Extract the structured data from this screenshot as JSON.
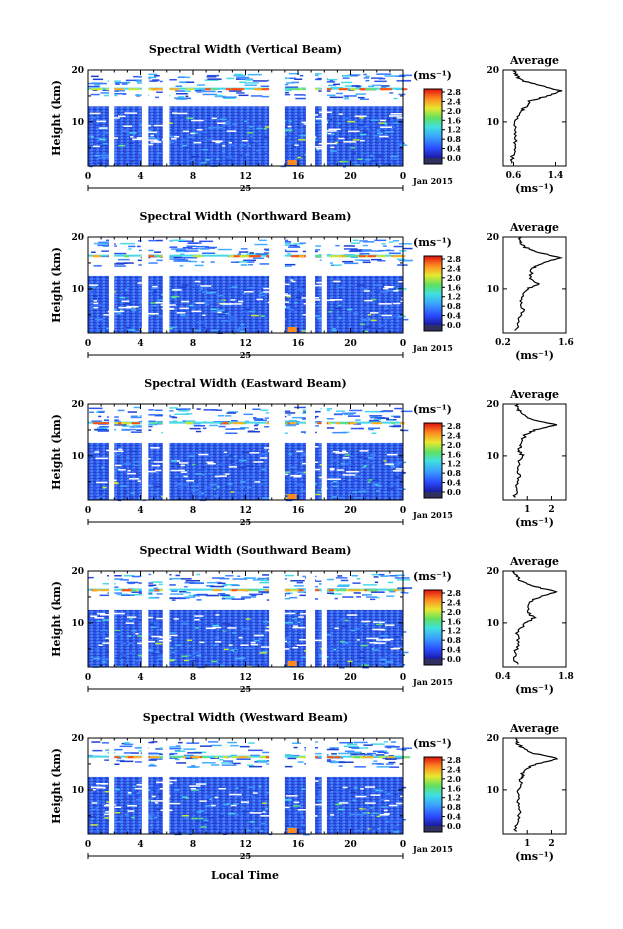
{
  "figure": {
    "date_label": "Jan 2015",
    "day_label": "25",
    "xlabel": "Local Time",
    "ylabel": "Height (km)",
    "colorbar_unit": "(ms⁻¹)",
    "colorbar_ticks": [
      "0.0",
      "0.4",
      "0.8",
      "1.2",
      "1.6",
      "2.0",
      "2.4",
      "2.8"
    ],
    "x_ticks": [
      "0",
      "4",
      "8",
      "12",
      "16",
      "20",
      "0"
    ],
    "y_ticks": [
      "20",
      "10"
    ],
    "avg_title": "Average",
    "avg_xlabel": "(ms⁻¹)"
  },
  "chart_data": [
    {
      "type": "heatmap",
      "title": "Spectral Width (Vertical Beam)",
      "x_range_hours": [
        0,
        24
      ],
      "y_range_km": [
        1.5,
        20
      ],
      "value_range": [
        0,
        2.8
      ],
      "data_gaps_hours": [
        [
          1.6,
          2.0
        ],
        [
          4.1,
          4.6
        ],
        [
          5.7,
          6.2
        ],
        [
          13.8,
          15.0
        ],
        [
          16.6,
          17.3
        ],
        [
          17.8,
          18.2
        ]
      ],
      "average_profile": {
        "xlim": [
          0.4,
          1.6
        ],
        "x_ticks": [
          "0.6",
          "1.4"
        ],
        "heights_km": [
          2,
          4,
          6,
          8,
          10,
          12,
          13,
          14,
          15,
          16,
          17,
          18,
          19,
          20
        ],
        "values": [
          0.55,
          0.6,
          0.62,
          0.65,
          0.62,
          0.72,
          0.85,
          0.9,
          1.25,
          1.5,
          1.1,
          0.75,
          0.65,
          0.62
        ]
      }
    },
    {
      "type": "heatmap",
      "title": "Spectral Width (Northward Beam)",
      "x_range_hours": [
        0,
        24
      ],
      "y_range_km": [
        1.5,
        20
      ],
      "value_range": [
        0,
        2.8
      ],
      "data_gaps_hours": [
        [
          1.6,
          2.0
        ],
        [
          4.1,
          4.6
        ],
        [
          5.7,
          6.2
        ],
        [
          13.8,
          15.0
        ],
        [
          16.6,
          17.3
        ],
        [
          17.8,
          18.2
        ]
      ],
      "average_profile": {
        "xlim": [
          0.2,
          1.6
        ],
        "x_ticks": [
          "0.2",
          "1.6"
        ],
        "heights_km": [
          2,
          4,
          6,
          8,
          10,
          11,
          12,
          14,
          15,
          16,
          17,
          18,
          19,
          20
        ],
        "values": [
          0.5,
          0.55,
          0.65,
          0.6,
          0.75,
          1.0,
          0.8,
          0.85,
          1.1,
          1.45,
          1.0,
          0.7,
          0.6,
          0.55
        ]
      }
    },
    {
      "type": "heatmap",
      "title": "Spectral Width (Eastward Beam)",
      "x_range_hours": [
        0,
        24
      ],
      "y_range_km": [
        1.5,
        20
      ],
      "value_range": [
        0,
        2.8
      ],
      "data_gaps_hours": [
        [
          1.6,
          2.0
        ],
        [
          4.1,
          4.6
        ],
        [
          5.7,
          6.2
        ],
        [
          13.8,
          15.0
        ],
        [
          16.6,
          17.3
        ],
        [
          17.8,
          18.2
        ]
      ],
      "average_profile": {
        "xlim": [
          0.0,
          2.6
        ],
        "x_ticks": [
          "1",
          "2"
        ],
        "heights_km": [
          2,
          4,
          6,
          8,
          10,
          11,
          12,
          14,
          15,
          16,
          17,
          18,
          19,
          20
        ],
        "values": [
          0.5,
          0.55,
          0.7,
          0.6,
          0.8,
          0.65,
          0.7,
          0.9,
          1.3,
          2.2,
          1.2,
          0.8,
          0.6,
          0.55
        ]
      }
    },
    {
      "type": "heatmap",
      "title": "Spectral Width (Southward Beam)",
      "x_range_hours": [
        0,
        24
      ],
      "y_range_km": [
        1.5,
        20
      ],
      "value_range": [
        0,
        2.8
      ],
      "data_gaps_hours": [
        [
          1.6,
          2.0
        ],
        [
          4.1,
          4.6
        ],
        [
          5.7,
          6.2
        ],
        [
          13.8,
          15.0
        ],
        [
          16.6,
          17.3
        ],
        [
          17.8,
          18.2
        ]
      ],
      "average_profile": {
        "xlim": [
          0.4,
          1.8
        ],
        "x_ticks": [
          "0.4",
          "1.8"
        ],
        "heights_km": [
          2,
          4,
          6,
          8,
          10,
          11,
          12,
          14,
          15,
          16,
          17,
          18,
          19,
          20
        ],
        "values": [
          0.7,
          0.65,
          0.75,
          0.7,
          0.9,
          1.1,
          0.95,
          1.0,
          1.2,
          1.6,
          1.1,
          0.8,
          0.7,
          0.65
        ]
      }
    },
    {
      "type": "heatmap",
      "title": "Spectral Width (Westward Beam)",
      "x_range_hours": [
        0,
        24
      ],
      "y_range_km": [
        1.5,
        20
      ],
      "value_range": [
        0,
        2.8
      ],
      "data_gaps_hours": [
        [
          1.6,
          2.0
        ],
        [
          4.1,
          4.6
        ],
        [
          5.7,
          6.2
        ],
        [
          13.8,
          15.0
        ],
        [
          16.6,
          17.3
        ],
        [
          17.8,
          18.2
        ]
      ],
      "average_profile": {
        "xlim": [
          0.0,
          2.6
        ],
        "x_ticks": [
          "1",
          "2"
        ],
        "heights_km": [
          2,
          4,
          6,
          8,
          10,
          12,
          13,
          14,
          15,
          16,
          17,
          18,
          19,
          20
        ],
        "values": [
          0.5,
          0.6,
          0.7,
          0.6,
          0.65,
          0.75,
          0.8,
          0.9,
          1.4,
          2.3,
          1.3,
          0.8,
          0.6,
          0.55
        ]
      }
    }
  ]
}
